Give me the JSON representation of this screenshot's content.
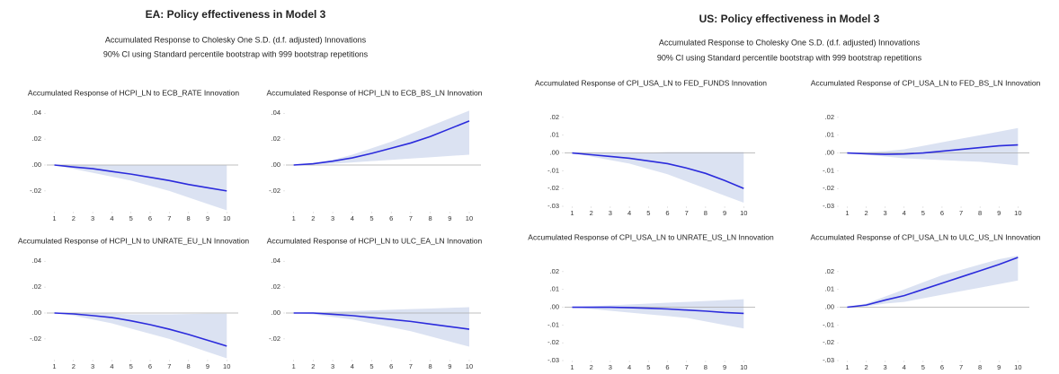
{
  "panels": [
    {
      "title": "EA: Policy effectiveness in Model 3",
      "subtitle": [
        "Accumulated Response to Cholesky One S.D. (d.f. adjusted) Innovations",
        "90% CI using Standard percentile bootstrap with 999 bootstrap repetitions"
      ]
    },
    {
      "title": "US: Policy effectiveness in Model 3",
      "subtitle": [
        "Accumulated Response to Cholesky One S.D. (d.f. adjusted) Innovations",
        "90% CI using Standard percentile bootstrap with 999 bootstrap repetitions"
      ]
    }
  ],
  "chart_data": [
    {
      "type": "line",
      "title": "Accumulated Response of HCPI_LN to ECB_RATE Innovation",
      "x": [
        1,
        2,
        3,
        4,
        5,
        6,
        7,
        8,
        9,
        10
      ],
      "xlim": [
        0.6,
        10.6
      ],
      "xticks": [
        1,
        2,
        3,
        4,
        5,
        6,
        7,
        8,
        9,
        10
      ],
      "ylim": [
        -0.036,
        0.045
      ],
      "yticks": [
        {
          "value": 0.04,
          "label": ".04"
        },
        {
          "value": 0.02,
          "label": ".02"
        },
        {
          "value": 0,
          "label": ".00"
        },
        {
          "value": -0.02,
          "label": "-.02"
        }
      ],
      "series": [
        {
          "color": "#2b2bdc",
          "values": [
            0,
            -0.0015,
            -0.0028,
            -0.005,
            -0.007,
            -0.0095,
            -0.012,
            -0.015,
            -0.0175,
            -0.02
          ]
        }
      ],
      "band": {
        "color": "#dbe2f2",
        "upper": [
          0,
          0,
          0,
          0,
          0,
          0,
          0,
          0,
          0,
          0
        ],
        "lower": [
          0,
          -0.003,
          -0.006,
          -0.009,
          -0.012,
          -0.016,
          -0.02,
          -0.025,
          -0.03,
          -0.035
        ]
      }
    },
    {
      "type": "line",
      "title": "Accumulated Response of HCPI_LN to ECB_BS_LN Innovation",
      "x": [
        1,
        2,
        3,
        4,
        5,
        6,
        7,
        8,
        9,
        10
      ],
      "xlim": [
        0.6,
        10.6
      ],
      "xticks": [
        1,
        2,
        3,
        4,
        5,
        6,
        7,
        8,
        9,
        10
      ],
      "ylim": [
        -0.036,
        0.045
      ],
      "yticks": [
        {
          "value": 0.04,
          "label": ".04"
        },
        {
          "value": 0.02,
          "label": ".02"
        },
        {
          "value": 0,
          "label": ".00"
        },
        {
          "value": -0.02,
          "label": "-.02"
        }
      ],
      "series": [
        {
          "color": "#2b2bdc",
          "values": [
            0,
            0.001,
            0.003,
            0.0055,
            0.009,
            0.013,
            0.017,
            0.022,
            0.028,
            0.034
          ]
        }
      ],
      "band": {
        "color": "#dbe2f2",
        "upper": [
          0,
          0.0015,
          0.004,
          0.008,
          0.013,
          0.018,
          0.024,
          0.03,
          0.036,
          0.042
        ],
        "lower": [
          0,
          0.0005,
          0.001,
          0.002,
          0.003,
          0.004,
          0.005,
          0.006,
          0.007,
          0.008
        ]
      }
    },
    {
      "type": "line",
      "title": "Accumulated Response of HCPI_LN to UNRATE_EU_LN Innovation",
      "x": [
        1,
        2,
        3,
        4,
        5,
        6,
        7,
        8,
        9,
        10
      ],
      "xlim": [
        0.6,
        10.6
      ],
      "xticks": [
        1,
        2,
        3,
        4,
        5,
        6,
        7,
        8,
        9,
        10
      ],
      "ylim": [
        -0.036,
        0.045
      ],
      "yticks": [
        {
          "value": 0.04,
          "label": ".04"
        },
        {
          "value": 0.02,
          "label": ".02"
        },
        {
          "value": 0,
          "label": ".00"
        },
        {
          "value": -0.02,
          "label": "-.02"
        }
      ],
      "series": [
        {
          "color": "#2b2bdc",
          "values": [
            0,
            -0.0007,
            -0.002,
            -0.0035,
            -0.006,
            -0.009,
            -0.0125,
            -0.0165,
            -0.021,
            -0.0255
          ]
        }
      ],
      "band": {
        "color": "#dbe2f2",
        "upper": [
          0,
          0,
          0,
          -0.0005,
          -0.001,
          -0.001,
          -0.001,
          -0.0008,
          -0.0005,
          -0.0005
        ],
        "lower": [
          0,
          -0.002,
          -0.005,
          -0.008,
          -0.012,
          -0.016,
          -0.02,
          -0.025,
          -0.03,
          -0.035
        ]
      }
    },
    {
      "type": "line",
      "title": "Accumulated Response of HCPI_LN to ULC_EA_LN Innovation",
      "x": [
        1,
        2,
        3,
        4,
        5,
        6,
        7,
        8,
        9,
        10
      ],
      "xlim": [
        0.6,
        10.6
      ],
      "xticks": [
        1,
        2,
        3,
        4,
        5,
        6,
        7,
        8,
        9,
        10
      ],
      "ylim": [
        -0.036,
        0.045
      ],
      "yticks": [
        {
          "value": 0.04,
          "label": ".04"
        },
        {
          "value": 0.02,
          "label": ".02"
        },
        {
          "value": 0,
          "label": ".00"
        },
        {
          "value": -0.02,
          "label": "-.02"
        }
      ],
      "series": [
        {
          "color": "#2b2bdc",
          "values": [
            0,
            0,
            -0.001,
            -0.002,
            -0.0035,
            -0.005,
            -0.0065,
            -0.0085,
            -0.0105,
            -0.0125
          ]
        }
      ],
      "band": {
        "color": "#dbe2f2",
        "upper": [
          0,
          0.0005,
          0.001,
          0.0015,
          0.002,
          0.0025,
          0.003,
          0.0035,
          0.004,
          0.0045
        ],
        "lower": [
          0,
          -0.001,
          -0.003,
          -0.005,
          -0.008,
          -0.011,
          -0.014,
          -0.018,
          -0.022,
          -0.026
        ]
      }
    },
    {
      "type": "line",
      "title": "Accumulated Response of CPI_USA_LN to FED_FUNDS Innovation",
      "x": [
        1,
        2,
        3,
        4,
        5,
        6,
        7,
        8,
        9,
        10
      ],
      "xlim": [
        0.6,
        10.6
      ],
      "xticks": [
        1,
        2,
        3,
        4,
        5,
        6,
        7,
        8,
        9,
        10
      ],
      "ylim": [
        -0.03,
        0.028
      ],
      "yticks": [
        {
          "value": 0.02,
          "label": ".02"
        },
        {
          "value": 0.01,
          "label": ".01"
        },
        {
          "value": 0,
          "label": ".00"
        },
        {
          "value": -0.01,
          "label": "-.01"
        },
        {
          "value": -0.02,
          "label": "-.02"
        },
        {
          "value": -0.03,
          "label": "-.03"
        }
      ],
      "series": [
        {
          "color": "#2b2bdc",
          "values": [
            0,
            -0.001,
            -0.002,
            -0.003,
            -0.0045,
            -0.006,
            -0.0085,
            -0.0115,
            -0.0155,
            -0.02
          ]
        }
      ],
      "band": {
        "color": "#dbe2f2",
        "upper": [
          0,
          0,
          0,
          0,
          0.0002,
          0.0005,
          0.0005,
          0.0005,
          0.0005,
          0.0005
        ],
        "lower": [
          0,
          -0.002,
          -0.004,
          -0.006,
          -0.009,
          -0.012,
          -0.016,
          -0.02,
          -0.024,
          -0.028
        ]
      }
    },
    {
      "type": "line",
      "title": "Accumulated Response of CPI_USA_LN to FED_BS_LN Innovation",
      "x": [
        1,
        2,
        3,
        4,
        5,
        6,
        7,
        8,
        9,
        10
      ],
      "xlim": [
        0.6,
        10.6
      ],
      "xticks": [
        1,
        2,
        3,
        4,
        5,
        6,
        7,
        8,
        9,
        10
      ],
      "ylim": [
        -0.03,
        0.028
      ],
      "yticks": [
        {
          "value": 0.02,
          "label": ".02"
        },
        {
          "value": 0.01,
          "label": ".01"
        },
        {
          "value": 0,
          "label": ".00"
        },
        {
          "value": -0.01,
          "label": "-.01"
        },
        {
          "value": -0.02,
          "label": "-.02"
        },
        {
          "value": -0.03,
          "label": "-.03"
        }
      ],
      "series": [
        {
          "color": "#2b2bdc",
          "values": [
            0,
            -0.0005,
            -0.0008,
            -0.0006,
            0,
            0.001,
            0.002,
            0.003,
            0.004,
            0.0045
          ]
        }
      ],
      "band": {
        "color": "#dbe2f2",
        "upper": [
          0,
          0.0005,
          0.001,
          0.002,
          0.004,
          0.006,
          0.008,
          0.01,
          0.012,
          0.014
        ],
        "lower": [
          0,
          -0.001,
          -0.002,
          -0.003,
          -0.0035,
          -0.004,
          -0.0045,
          -0.005,
          -0.006,
          -0.007
        ]
      }
    },
    {
      "type": "line",
      "title": "Accumulated Response of CPI_USA_LN to UNRATE_US_LN Innovation",
      "x": [
        1,
        2,
        3,
        4,
        5,
        6,
        7,
        8,
        9,
        10
      ],
      "xlim": [
        0.6,
        10.6
      ],
      "xticks": [
        1,
        2,
        3,
        4,
        5,
        6,
        7,
        8,
        9,
        10
      ],
      "ylim": [
        -0.03,
        0.028
      ],
      "yticks": [
        {
          "value": 0.02,
          "label": ".02"
        },
        {
          "value": 0.01,
          "label": ".01"
        },
        {
          "value": 0,
          "label": ".00"
        },
        {
          "value": -0.01,
          "label": "-.01"
        },
        {
          "value": -0.02,
          "label": "-.02"
        },
        {
          "value": -0.03,
          "label": "-.03"
        }
      ],
      "series": [
        {
          "color": "#2b2bdc",
          "values": [
            0,
            0,
            0,
            -0.0003,
            -0.0006,
            -0.001,
            -0.0016,
            -0.0022,
            -0.003,
            -0.0035
          ]
        }
      ],
      "band": {
        "color": "#dbe2f2",
        "upper": [
          0,
          0.0005,
          0.001,
          0.0015,
          0.002,
          0.0025,
          0.003,
          0.0035,
          0.004,
          0.0045
        ],
        "lower": [
          0,
          -0.001,
          -0.002,
          -0.003,
          -0.004,
          -0.005,
          -0.006,
          -0.008,
          -0.01,
          -0.012
        ]
      }
    },
    {
      "type": "line",
      "title": "Accumulated Response of CPI_USA_LN to ULC_US_LN Innovation",
      "x": [
        1,
        2,
        3,
        4,
        5,
        6,
        7,
        8,
        9,
        10
      ],
      "xlim": [
        0.6,
        10.6
      ],
      "xticks": [
        1,
        2,
        3,
        4,
        5,
        6,
        7,
        8,
        9,
        10
      ],
      "ylim": [
        -0.03,
        0.028
      ],
      "yticks": [
        {
          "value": 0.02,
          "label": ".02"
        },
        {
          "value": 0.01,
          "label": ".01"
        },
        {
          "value": 0,
          "label": ".00"
        },
        {
          "value": -0.01,
          "label": "-.01"
        },
        {
          "value": -0.02,
          "label": "-.02"
        },
        {
          "value": -0.03,
          "label": "-.03"
        }
      ],
      "series": [
        {
          "color": "#2b2bdc",
          "values": [
            0,
            0.0012,
            0.004,
            0.0065,
            0.01,
            0.0135,
            0.017,
            0.0205,
            0.024,
            0.028
          ]
        }
      ],
      "band": {
        "color": "#dbe2f2",
        "upper": [
          0,
          0.002,
          0.006,
          0.01,
          0.014,
          0.018,
          0.021,
          0.024,
          0.027,
          0.029
        ],
        "lower": [
          0,
          0.0005,
          0.002,
          0.003,
          0.005,
          0.007,
          0.009,
          0.011,
          0.013,
          0.015
        ]
      }
    }
  ]
}
